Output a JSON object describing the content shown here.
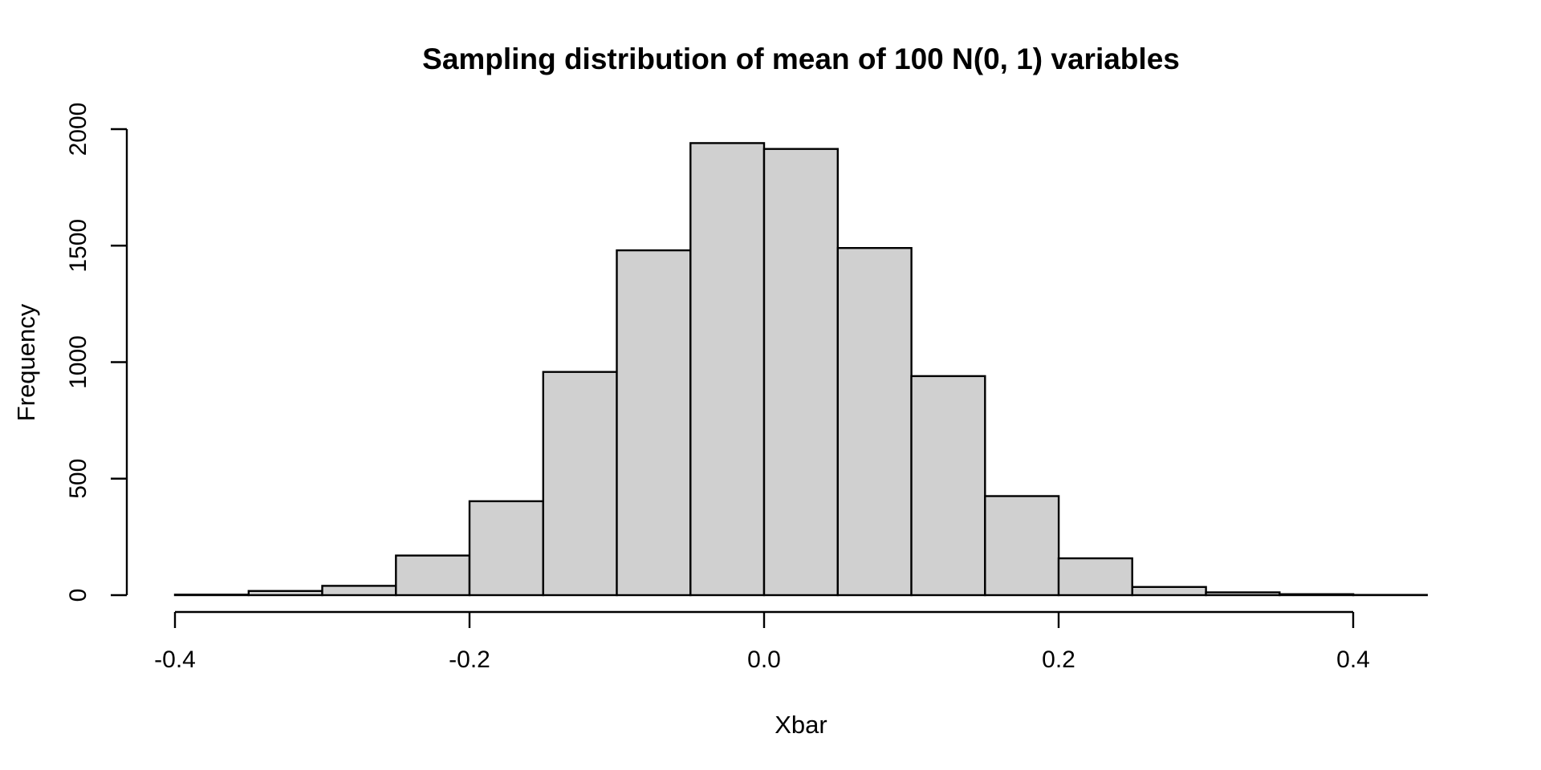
{
  "chart_data": {
    "type": "bar",
    "subtype": "histogram",
    "title": "Sampling distribution of mean of 100 N(0, 1) variables",
    "xlabel": "Xbar",
    "ylabel": "Frequency",
    "bin_edges": [
      -0.4,
      -0.35,
      -0.3,
      -0.25,
      -0.2,
      -0.15,
      -0.1,
      -0.05,
      0.0,
      0.05,
      0.1,
      0.15,
      0.2,
      0.25,
      0.3,
      0.35,
      0.4,
      0.45
    ],
    "counts": [
      2,
      18,
      40,
      170,
      403,
      958,
      1480,
      1940,
      1915,
      1490,
      940,
      425,
      158,
      35,
      12,
      4,
      1
    ],
    "x_ticks": [
      {
        "value": -0.4,
        "label": "-0.4"
      },
      {
        "value": -0.2,
        "label": "-0.2"
      },
      {
        "value": 0.0,
        "label": "0.0"
      },
      {
        "value": 0.2,
        "label": "0.2"
      },
      {
        "value": 0.4,
        "label": "0.4"
      }
    ],
    "y_ticks": [
      {
        "value": 0,
        "label": "0"
      },
      {
        "value": 500,
        "label": "500"
      },
      {
        "value": 1000,
        "label": "1000"
      },
      {
        "value": 1500,
        "label": "1500"
      },
      {
        "value": 2000,
        "label": "2000"
      }
    ],
    "xlim": [
      -0.434,
      0.484
    ],
    "ylim": [
      0,
      2000
    ],
    "grid": false,
    "legend": null,
    "colors": {
      "bar_fill": "#d0d0d0",
      "bar_stroke": "#000000",
      "axis": "#000000",
      "background": "#ffffff",
      "title_text": "#000000"
    }
  }
}
